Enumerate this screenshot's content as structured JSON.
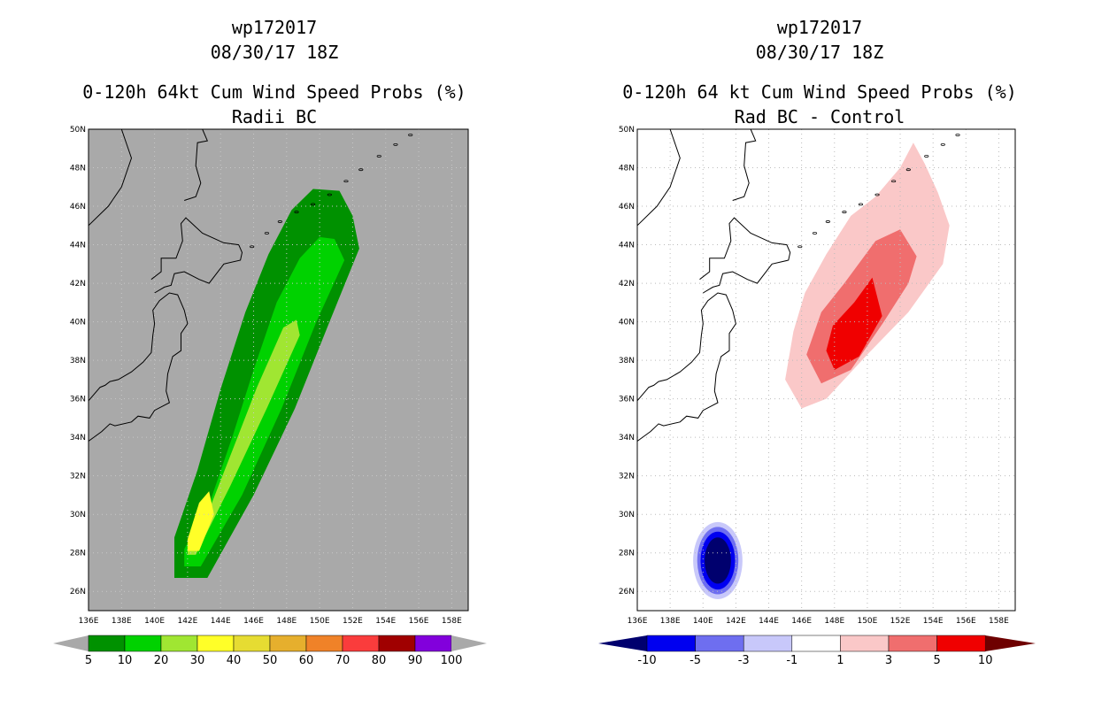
{
  "panels": [
    {
      "id": "left",
      "storm": "wp172017",
      "datetime": "08/30/17 18Z",
      "title": "0-120h 64kt Cum Wind Speed Probs (%)",
      "subtitle": "Radii BC",
      "background": "#a9a9a9"
    },
    {
      "id": "right",
      "storm": "wp172017",
      "datetime": "08/30/17 18Z",
      "title": "0-120h 64 kt Cum Wind Speed Probs (%)",
      "subtitle": "Rad BC - Control",
      "background": "#ffffff"
    }
  ],
  "chart_data": [
    {
      "type": "heatmap",
      "title": "0-120h 64kt Cum Wind Speed Probs (%)",
      "subtitle": "Radii BC",
      "x_ticks": [
        "136E",
        "138E",
        "140E",
        "142E",
        "144E",
        "146E",
        "148E",
        "150E",
        "152E",
        "154E",
        "156E",
        "158E"
      ],
      "y_ticks": [
        "50N",
        "48N",
        "46N",
        "44N",
        "42N",
        "40N",
        "38N",
        "36N",
        "34N",
        "32N",
        "30N",
        "28N",
        "26N"
      ],
      "lon_range": [
        136,
        159
      ],
      "lat_range": [
        25,
        50
      ],
      "colorbar": {
        "labels": [
          "5",
          "10",
          "20",
          "30",
          "40",
          "50",
          "60",
          "70",
          "80",
          "90",
          "100"
        ],
        "colors": [
          "#009100",
          "#00d200",
          "#a0e632",
          "#ffff28",
          "#e6dc32",
          "#e6af2d",
          "#f08228",
          "#fa3c3c",
          "#a00000",
          "#8200dc"
        ]
      },
      "swath": {
        "description": "probability swath along track from ~28N 141.5E to ~46N 151E",
        "levels": [
          {
            "min": 5,
            "color": "#009100"
          },
          {
            "min": 10,
            "color": "#00d200"
          },
          {
            "min": 20,
            "color": "#a0e632"
          },
          {
            "min": 30,
            "color": "#ffff28"
          }
        ]
      }
    },
    {
      "type": "heatmap",
      "title": "0-120h 64 kt Cum Wind Speed Probs (%)",
      "subtitle": "Rad BC - Control",
      "x_ticks": [
        "136E",
        "138E",
        "140E",
        "142E",
        "144E",
        "146E",
        "148E",
        "150E",
        "152E",
        "154E",
        "156E",
        "158E"
      ],
      "y_ticks": [
        "50N",
        "48N",
        "46N",
        "44N",
        "42N",
        "40N",
        "38N",
        "36N",
        "34N",
        "32N",
        "30N",
        "28N",
        "26N"
      ],
      "lon_range": [
        136,
        159
      ],
      "lat_range": [
        25,
        50
      ],
      "grid": true,
      "colorbar": {
        "labels": [
          "-10",
          "-5",
          "-3",
          "-1",
          "1",
          "3",
          "5",
          "10"
        ],
        "colors": [
          "#00006e",
          "#0000f0",
          "#6e6ef0",
          "#c8c8fa",
          "#ffffff",
          "#fac8c8",
          "#f06e6e",
          "#f00000",
          "#6e0000"
        ]
      },
      "anomalies": [
        {
          "sign": "positive",
          "center_lon": 149,
          "center_lat": 39,
          "peak": ">5"
        },
        {
          "sign": "negative",
          "center_lon": 140.8,
          "center_lat": 27.5,
          "peak": "<-10"
        }
      ]
    }
  ]
}
